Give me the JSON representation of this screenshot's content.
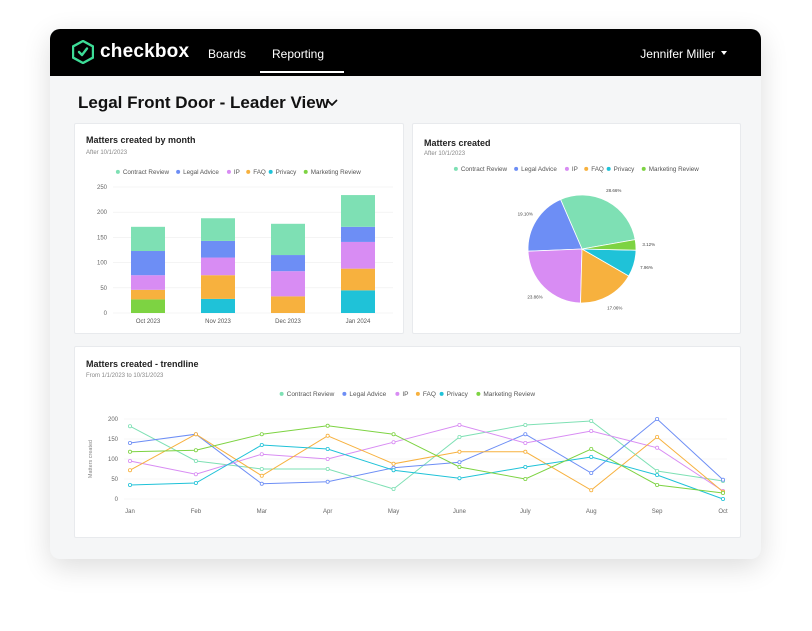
{
  "app": {
    "logo_text": "checkbox",
    "nav": {
      "boards": "Boards",
      "reporting": "Reporting"
    },
    "user_name": "Jennifer Miller",
    "page_title": "Legal Front Door - Leader View"
  },
  "colors": {
    "contract_review": "#7ee0b4",
    "legal_advice": "#6d8ef5",
    "ip": "#d88cf3",
    "faq": "#f7b13e",
    "privacy": "#1fc2d8",
    "marketing_review": "#7dd342"
  },
  "legend": [
    "Contract Review",
    "Legal Advice",
    "IP",
    "FAQ",
    "Privacy",
    "Marketing Review"
  ],
  "cards": {
    "bar": {
      "title": "Matters created by month",
      "subtitle": "After 10/1/2023"
    },
    "pie": {
      "title": "Matters created",
      "subtitle": "After 10/1/2023"
    },
    "line": {
      "title": "Matters created - trendline",
      "subtitle": "From 1/1/2023 to 10/31/2023"
    }
  },
  "chart_data": [
    {
      "type": "bar",
      "stacked": true,
      "categories": [
        "Oct 2023",
        "Nov 2023",
        "Dec 2023",
        "Jan 2024"
      ],
      "ylim": [
        0,
        250
      ],
      "yticks": [
        0,
        50,
        100,
        150,
        200,
        250
      ],
      "series": [
        {
          "name": "Marketing Review",
          "values": [
            27,
            0,
            0,
            0
          ]
        },
        {
          "name": "Privacy",
          "values": [
            0,
            28,
            0,
            45
          ]
        },
        {
          "name": "FAQ",
          "values": [
            19,
            47,
            33,
            43
          ]
        },
        {
          "name": "IP",
          "values": [
            29,
            35,
            50,
            53
          ]
        },
        {
          "name": "Legal Advice",
          "values": [
            48,
            33,
            32,
            30
          ]
        },
        {
          "name": "Contract Review",
          "values": [
            48,
            45,
            62,
            63
          ]
        }
      ]
    },
    {
      "type": "pie",
      "slices": [
        {
          "name": "Contract Review",
          "value": 28.66,
          "label": "28.66%"
        },
        {
          "name": "Legal Advice",
          "value": 19.1,
          "label": "19.10%"
        },
        {
          "name": "IP",
          "value": 23.86,
          "label": "23.86%"
        },
        {
          "name": "FAQ",
          "value": 17.06,
          "label": "17.06%"
        },
        {
          "name": "Privacy",
          "value": 7.96,
          "label": "7.96%"
        },
        {
          "name": "Marketing Review",
          "value": 3.12,
          "label": "3.12%"
        }
      ]
    },
    {
      "type": "line",
      "categories": [
        "Jan",
        "Feb",
        "Mar",
        "Apr",
        "May",
        "June",
        "July",
        "Aug",
        "Sep",
        "Oct"
      ],
      "ylabel": "Matters created",
      "ylim": [
        0,
        200
      ],
      "yticks": [
        0,
        50,
        100,
        150,
        200
      ],
      "series": [
        {
          "name": "Contract Review",
          "values": [
            182,
            95,
            75,
            75,
            25,
            155,
            185,
            195,
            70,
            45
          ]
        },
        {
          "name": "Legal Advice",
          "values": [
            140,
            162,
            38,
            43,
            78,
            92,
            162,
            65,
            200,
            48
          ]
        },
        {
          "name": "IP",
          "values": [
            95,
            62,
            112,
            100,
            142,
            185,
            140,
            170,
            128,
            20
          ]
        },
        {
          "name": "FAQ",
          "values": [
            72,
            162,
            58,
            158,
            88,
            118,
            118,
            22,
            155,
            18
          ]
        },
        {
          "name": "Privacy",
          "values": [
            35,
            40,
            135,
            125,
            72,
            52,
            80,
            105,
            60,
            0
          ]
        },
        {
          "name": "Marketing Review",
          "values": [
            118,
            122,
            162,
            183,
            162,
            80,
            50,
            125,
            35,
            15
          ]
        }
      ]
    }
  ]
}
